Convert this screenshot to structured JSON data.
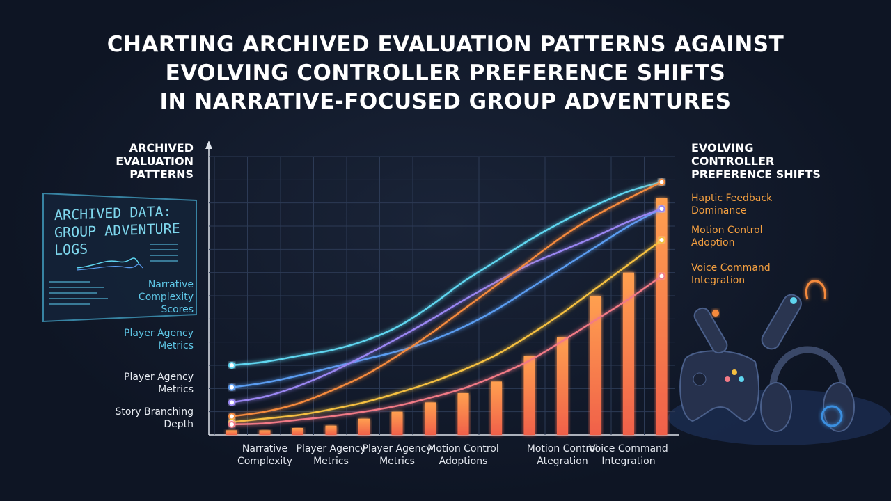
{
  "chart_data": {
    "type": "combo",
    "title": [
      "CHARTING ARCHIVED EVALUATION PATTERNS AGAINST",
      "EVOLVING CONTROLLER PREFERENCE SHIFTS",
      "IN NARRATIVE-FOCUSED GROUP ADVENTURES"
    ],
    "y_label": "ARCHIVED\nEVALUATION\nPATTERNS",
    "y2_label": "EVOLVING\nCONTROLLER\nPREFERENCE SHIFTS",
    "panel_title": "ARCHIVED DATA:\nGROUP ADVENTURE\nLOGS",
    "left_annotations": [
      "Narrative\nComplexity\nScores",
      "Player Agency\nMetrics",
      "Player Agency\nMetrics",
      "Story Branching\nDepth"
    ],
    "right_annotations": [
      "Haptic Feedback\nDominance",
      "Motion Control\nAdoption",
      "Voice Command\nIntegration"
    ],
    "categories": [
      null,
      "Narrative\nComplexity",
      null,
      "Player Agency\nMetrics",
      null,
      "Player Agency\nMetrics",
      null,
      "Motion Control\nAdoptions",
      null,
      null,
      "Motion Control\nAtegration",
      null,
      "Voice Command\nIntegration",
      null
    ],
    "bar_color": "#f7774a",
    "values": [
      0.2,
      0.2,
      0.3,
      0.4,
      0.7,
      1.0,
      1.4,
      1.8,
      2.3,
      3.4,
      4.2,
      6.0,
      7.0,
      10.2
    ],
    "series": [
      {
        "color": "#5fd6f0",
        "values": [
          3.0,
          3.15,
          3.4,
          3.65,
          4.05,
          4.65,
          5.55,
          6.6,
          7.5,
          8.4,
          9.2,
          9.9,
          10.5,
          10.9
        ]
      },
      {
        "color": "#5a9cf0",
        "values": [
          2.05,
          2.25,
          2.55,
          2.9,
          3.25,
          3.6,
          4.05,
          4.65,
          5.4,
          6.3,
          7.2,
          8.1,
          9.0,
          9.75
        ]
      },
      {
        "color": "#9a86f2",
        "values": [
          1.4,
          1.65,
          2.1,
          2.7,
          3.4,
          4.15,
          4.95,
          5.8,
          6.6,
          7.35,
          7.95,
          8.55,
          9.2,
          9.75
        ]
      },
      {
        "color": "#f58a3c",
        "values": [
          0.8,
          1.0,
          1.35,
          1.9,
          2.55,
          3.4,
          4.35,
          5.4,
          6.45,
          7.5,
          8.55,
          9.45,
          10.2,
          10.9
        ]
      },
      {
        "color": "#f5c040",
        "values": [
          0.55,
          0.7,
          0.85,
          1.1,
          1.4,
          1.8,
          2.25,
          2.8,
          3.45,
          4.3,
          5.25,
          6.3,
          7.35,
          8.4
        ]
      },
      {
        "color": "#f27a86",
        "values": [
          0.45,
          0.5,
          0.65,
          0.8,
          1.0,
          1.25,
          1.6,
          2.0,
          2.55,
          3.2,
          4.05,
          4.95,
          5.85,
          6.85
        ]
      }
    ],
    "ylim": [
      0,
      12
    ],
    "yticks": [
      1,
      2,
      3,
      4,
      5,
      6,
      7,
      8,
      9,
      10,
      11,
      12
    ],
    "grid": true
  }
}
